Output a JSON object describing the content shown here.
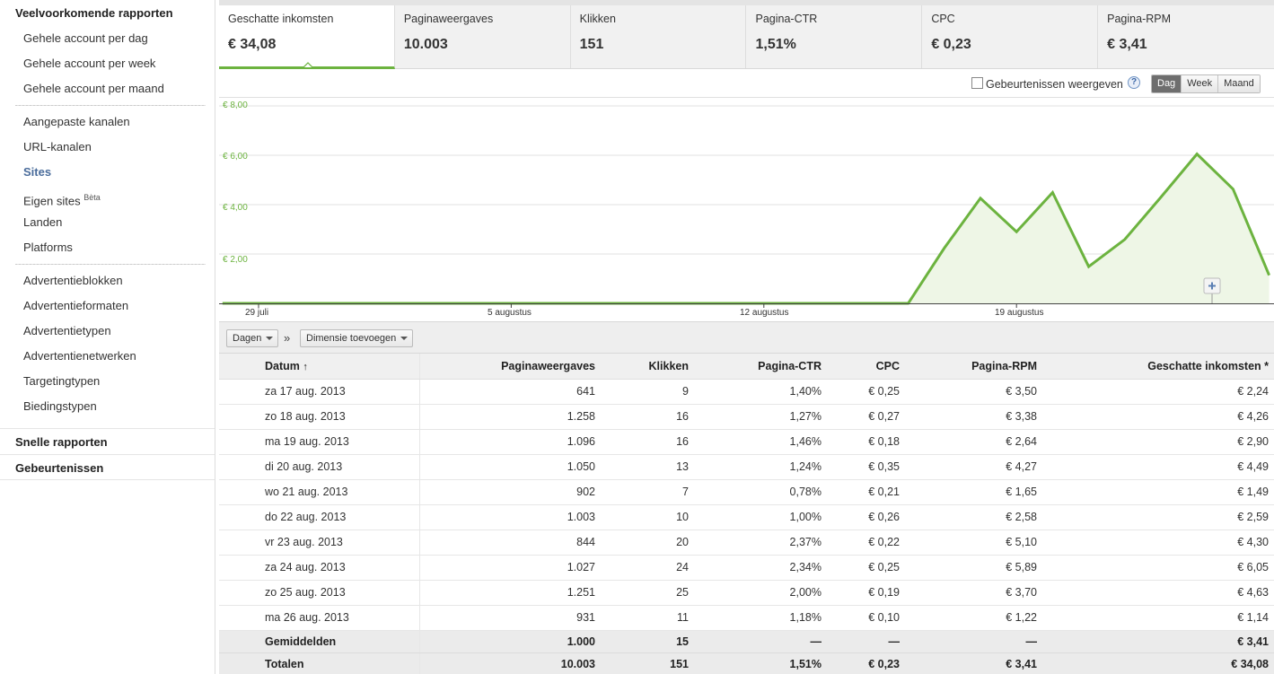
{
  "sidebar": {
    "heading": "Veelvoorkomende rapporten",
    "group1": [
      "Gehele account per dag",
      "Gehele account per week",
      "Gehele account per maand"
    ],
    "group2": [
      {
        "label": "Aangepaste kanalen",
        "active": false
      },
      {
        "label": "URL-kanalen",
        "active": false
      },
      {
        "label": "Sites",
        "active": true
      },
      {
        "label": "Eigen sites",
        "badge": "Bèta",
        "active": false
      },
      {
        "label": "Landen",
        "active": false
      },
      {
        "label": "Platforms",
        "active": false
      }
    ],
    "group3": [
      "Advertentieblokken",
      "Advertentieformaten",
      "Advertentietypen",
      "Advertentienetwerken",
      "Targetingtypen",
      "Biedingstypen"
    ],
    "section2": "Snelle rapporten",
    "section3": "Gebeurtenissen"
  },
  "metrics": [
    {
      "label": "Geschatte inkomsten",
      "value": "€ 34,08",
      "selected": true
    },
    {
      "label": "Paginaweergaves",
      "value": "10.003"
    },
    {
      "label": "Klikken",
      "value": "151"
    },
    {
      "label": "Pagina-CTR",
      "value": "1,51%"
    },
    {
      "label": "CPC",
      "value": "€ 0,23"
    },
    {
      "label": "Pagina-RPM",
      "value": "€ 3,41"
    }
  ],
  "chart_toolbar": {
    "events_label": "Gebeurtenissen weergeven",
    "events_checked": false,
    "help": "?",
    "ranges": [
      "Dag",
      "Week",
      "Maand"
    ],
    "active_range": "Dag"
  },
  "chart_data": {
    "type": "area",
    "y_ticks": [
      "€ 8,00",
      "€ 6,00",
      "€ 4,00",
      "€ 2,00"
    ],
    "ylim": [
      0,
      8
    ],
    "x_tick_labels": [
      "29 juli",
      "5 augustus",
      "12 augustus",
      "19 augustus"
    ],
    "x": [
      "28 jul",
      "29 jul",
      "30 jul",
      "31 jul",
      "1 aug",
      "2 aug",
      "3 aug",
      "4 aug",
      "5 aug",
      "6 aug",
      "7 aug",
      "8 aug",
      "9 aug",
      "10 aug",
      "11 aug",
      "12 aug",
      "13 aug",
      "14 aug",
      "15 aug",
      "16 aug",
      "17 aug",
      "18 aug",
      "19 aug",
      "20 aug",
      "21 aug",
      "22 aug",
      "23 aug",
      "24 aug",
      "25 aug",
      "26 aug"
    ],
    "series": [
      {
        "values": [
          0,
          0,
          0,
          0,
          0,
          0,
          0,
          0,
          0,
          0,
          0,
          0,
          0,
          0,
          0,
          0,
          0,
          0,
          0,
          0,
          2.24,
          4.26,
          2.9,
          4.49,
          1.49,
          2.59,
          4.3,
          6.05,
          4.63,
          1.14
        ]
      }
    ],
    "color": "#6cb33f",
    "fill": "#eef6e6",
    "grid": true
  },
  "dimension_bar": {
    "dimension": "Dagen",
    "separator": "»",
    "add_dimension": "Dimensie toevoegen"
  },
  "table": {
    "headers": {
      "date": "Datum",
      "sort_arrow": "↑",
      "pageviews": "Paginaweergaves",
      "clicks": "Klikken",
      "ctr": "Pagina-CTR",
      "cpc": "CPC",
      "rpm": "Pagina-RPM",
      "income": "Geschatte inkomsten *"
    },
    "rows": [
      [
        "za 17 aug. 2013",
        "641",
        "9",
        "1,40%",
        "€ 0,25",
        "€ 3,50",
        "€ 2,24"
      ],
      [
        "zo 18 aug. 2013",
        "1.258",
        "16",
        "1,27%",
        "€ 0,27",
        "€ 3,38",
        "€ 4,26"
      ],
      [
        "ma 19 aug. 2013",
        "1.096",
        "16",
        "1,46%",
        "€ 0,18",
        "€ 2,64",
        "€ 2,90"
      ],
      [
        "di 20 aug. 2013",
        "1.050",
        "13",
        "1,24%",
        "€ 0,35",
        "€ 4,27",
        "€ 4,49"
      ],
      [
        "wo 21 aug. 2013",
        "902",
        "7",
        "0,78%",
        "€ 0,21",
        "€ 1,65",
        "€ 1,49"
      ],
      [
        "do 22 aug. 2013",
        "1.003",
        "10",
        "1,00%",
        "€ 0,26",
        "€ 2,58",
        "€ 2,59"
      ],
      [
        "vr 23 aug. 2013",
        "844",
        "20",
        "2,37%",
        "€ 0,22",
        "€ 5,10",
        "€ 4,30"
      ],
      [
        "za 24 aug. 2013",
        "1.027",
        "24",
        "2,34%",
        "€ 0,25",
        "€ 5,89",
        "€ 6,05"
      ],
      [
        "zo 25 aug. 2013",
        "1.251",
        "25",
        "2,00%",
        "€ 0,19",
        "€ 3,70",
        "€ 4,63"
      ],
      [
        "ma 26 aug. 2013",
        "931",
        "11",
        "1,18%",
        "€ 0,10",
        "€ 1,22",
        "€ 1,14"
      ]
    ],
    "averages": [
      "Gemiddelden",
      "1.000",
      "15",
      "—",
      "—",
      "—",
      "€ 3,41"
    ],
    "totals": [
      "Totalen",
      "10.003",
      "151",
      "1,51%",
      "€ 0,23",
      "€ 3,41",
      "€ 34,08"
    ]
  }
}
